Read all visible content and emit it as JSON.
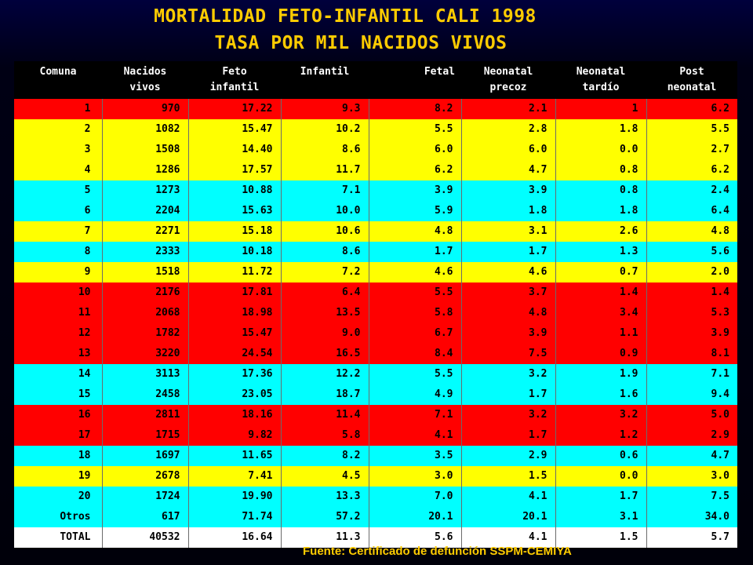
{
  "title_line1": "MORTALIDAD FETO-INFANTIL CALI 1998",
  "title_line2": "TASA POR MIL NACIDOS VIVOS",
  "headers": [
    [
      "Comuna",
      ""
    ],
    [
      "Nacidos",
      "vivos"
    ],
    [
      "Feto",
      "infantil"
    ],
    [
      "Infantil",
      ""
    ],
    [
      "Fetal",
      ""
    ],
    [
      "Neonatal",
      "precoz"
    ],
    [
      "Neonatal",
      "tardío"
    ],
    [
      "Post",
      "neonatal"
    ]
  ],
  "rows": [
    {
      "color": "red",
      "cells": [
        "1",
        "970",
        "17.22",
        "9.3",
        "8.2",
        "2.1",
        "1",
        "6.2"
      ]
    },
    {
      "color": "yellow",
      "cells": [
        "2",
        "1082",
        "15.47",
        "10.2",
        "5.5",
        "2.8",
        "1.8",
        "5.5"
      ]
    },
    {
      "color": "yellow",
      "cells": [
        "3",
        "1508",
        "14.40",
        "8.6",
        "6.0",
        "6.0",
        "0.0",
        "2.7"
      ]
    },
    {
      "color": "yellow",
      "cells": [
        "4",
        "1286",
        "17.57",
        "11.7",
        "6.2",
        "4.7",
        "0.8",
        "6.2"
      ]
    },
    {
      "color": "cyan",
      "cells": [
        "5",
        "1273",
        "10.88",
        "7.1",
        "3.9",
        "3.9",
        "0.8",
        "2.4"
      ]
    },
    {
      "color": "cyan",
      "cells": [
        "6",
        "2204",
        "15.63",
        "10.0",
        "5.9",
        "1.8",
        "1.8",
        "6.4"
      ]
    },
    {
      "color": "yellow",
      "cells": [
        "7",
        "2271",
        "15.18",
        "10.6",
        "4.8",
        "3.1",
        "2.6",
        "4.8"
      ]
    },
    {
      "color": "cyan",
      "cells": [
        "8",
        "2333",
        "10.18",
        "8.6",
        "1.7",
        "1.7",
        "1.3",
        "5.6"
      ]
    },
    {
      "color": "yellow",
      "cells": [
        "9",
        "1518",
        "11.72",
        "7.2",
        "4.6",
        "4.6",
        "0.7",
        "2.0"
      ]
    },
    {
      "color": "red",
      "cells": [
        "10",
        "2176",
        "17.81",
        "6.4",
        "5.5",
        "3.7",
        "1.4",
        "1.4"
      ]
    },
    {
      "color": "red",
      "cells": [
        "11",
        "2068",
        "18.98",
        "13.5",
        "5.8",
        "4.8",
        "3.4",
        "5.3"
      ]
    },
    {
      "color": "red",
      "cells": [
        "12",
        "1782",
        "15.47",
        "9.0",
        "6.7",
        "3.9",
        "1.1",
        "3.9"
      ]
    },
    {
      "color": "red",
      "cells": [
        "13",
        "3220",
        "24.54",
        "16.5",
        "8.4",
        "7.5",
        "0.9",
        "8.1"
      ]
    },
    {
      "color": "cyan",
      "cells": [
        "14",
        "3113",
        "17.36",
        "12.2",
        "5.5",
        "3.2",
        "1.9",
        "7.1"
      ]
    },
    {
      "color": "cyan",
      "cells": [
        "15",
        "2458",
        "23.05",
        "18.7",
        "4.9",
        "1.7",
        "1.6",
        "9.4"
      ]
    },
    {
      "color": "red",
      "cells": [
        "16",
        "2811",
        "18.16",
        "11.4",
        "7.1",
        "3.2",
        "3.2",
        "5.0"
      ]
    },
    {
      "color": "red",
      "cells": [
        "17",
        "1715",
        "9.82",
        "5.8",
        "4.1",
        "1.7",
        "1.2",
        "2.9"
      ]
    },
    {
      "color": "cyan",
      "cells": [
        "18",
        "1697",
        "11.65",
        "8.2",
        "3.5",
        "2.9",
        "0.6",
        "4.7"
      ]
    },
    {
      "color": "yellow",
      "cells": [
        "19",
        "2678",
        "7.41",
        "4.5",
        "3.0",
        "1.5",
        "0.0",
        "3.0"
      ]
    },
    {
      "color": "cyan",
      "cells": [
        "20",
        "1724",
        "19.90",
        "13.3",
        "7.0",
        "4.1",
        "1.7",
        "7.5"
      ]
    },
    {
      "color": "cyan",
      "cells": [
        "Otros",
        "617",
        "71.74",
        "57.2",
        "20.1",
        "20.1",
        "3.1",
        "34.0"
      ]
    },
    {
      "color": "white",
      "cells": [
        "TOTAL",
        "40532",
        "16.64",
        "11.3",
        "5.6",
        "4.1",
        "1.5",
        "5.7"
      ]
    }
  ],
  "source": "Fuente:  Certificado de defunción SSPM-CEMIYA",
  "colors": {
    "title": "#ffcc00",
    "red": "#ff0000",
    "yellow": "#ffff00",
    "cyan": "#00ffff",
    "white": "#ffffff",
    "background": "#000014"
  }
}
